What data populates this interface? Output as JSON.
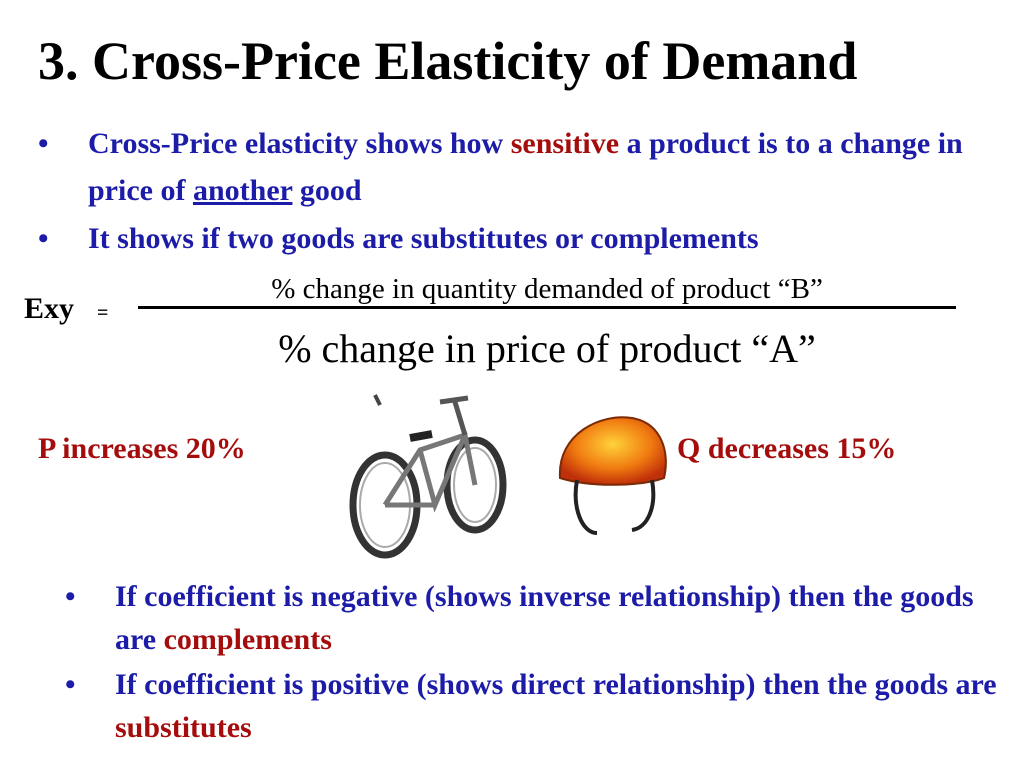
{
  "title": "3. Cross-Price Elasticity of Demand",
  "top_bullets": [
    {
      "parts": [
        "Cross-Price elasticity shows how",
        "sensitive",
        "a product is to a change in price of",
        "another",
        "good"
      ]
    },
    {
      "parts": [
        "It shows if two goods are substitutes or complements"
      ]
    }
  ],
  "formula": {
    "lhs": "Exy",
    "equals": "=",
    "numerator": "% change in quantity demanded of product “B”",
    "denominator": "% change in price of product “A”"
  },
  "example": {
    "left": "P increases 20%",
    "right": "Q decreases 15%"
  },
  "bottom_bullets": [
    {
      "parts": [
        "If coefficient is negative (shows inverse relationship) then the goods are",
        "complements"
      ]
    },
    {
      "parts": [
        "If coefficient is positive (shows direct relationship) then the goods are",
        "substitutes"
      ]
    }
  ]
}
